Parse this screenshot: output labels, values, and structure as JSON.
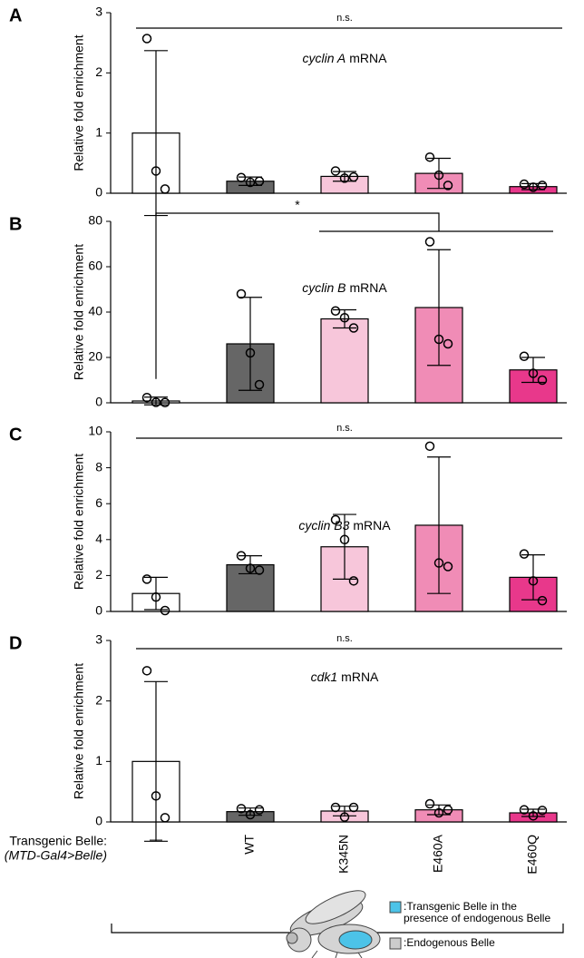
{
  "chart_data": [
    {
      "type": "bar",
      "panel": "A",
      "title_italic": "cyclin A",
      "title_rest": "mRNA",
      "y_label": "Relative fold enrichment",
      "categories": [
        null,
        null,
        null,
        null,
        null
      ],
      "values": [
        1.0,
        0.2,
        0.28,
        0.33,
        0.11
      ],
      "errors": [
        1.37,
        0.07,
        0.08,
        0.25,
        0.05
      ],
      "points": [
        [
          2.57,
          0.37,
          0.07
        ],
        [
          0.26,
          0.18,
          0.2
        ],
        [
          0.37,
          0.25,
          0.27
        ],
        [
          0.6,
          0.3,
          0.13
        ],
        [
          0.15,
          0.1,
          0.13
        ]
      ],
      "colors": [
        "#ffffff",
        "#666666",
        "#f7c6da",
        "#f08cb6",
        "#e8388b"
      ],
      "ylim": [
        0,
        3
      ],
      "yticks": [
        0,
        1,
        2,
        3
      ],
      "annotation": "n.s."
    },
    {
      "type": "bar",
      "panel": "B",
      "title_italic": "cyclin B",
      "title_rest": "mRNA",
      "y_label": "Relative fold enrichment",
      "categories": [
        null,
        null,
        null,
        null,
        null
      ],
      "values": [
        0.8,
        26,
        37,
        42,
        14.5
      ],
      "errors": [
        1.7,
        20.5,
        4,
        25.5,
        5.5
      ],
      "points": [
        [
          2.3,
          0.2,
          0.1
        ],
        [
          48,
          22,
          8
        ],
        [
          40.5,
          37.5,
          33
        ],
        [
          71,
          28,
          26
        ],
        [
          20.5,
          13,
          10
        ]
      ],
      "colors": [
        "#ffffff",
        "#666666",
        "#f7c6da",
        "#f08cb6",
        "#e8388b"
      ],
      "ylim": [
        0,
        80
      ],
      "yticks": [
        0,
        20,
        40,
        60,
        80
      ],
      "annotation": "*"
    },
    {
      "type": "bar",
      "panel": "C",
      "title_italic": "cyclin B3",
      "title_rest": "mRNA",
      "y_label": "Relative fold enrichment",
      "categories": [
        null,
        null,
        null,
        null,
        null
      ],
      "values": [
        1.0,
        2.6,
        3.6,
        4.8,
        1.9
      ],
      "errors": [
        0.9,
        0.5,
        1.8,
        3.8,
        1.25
      ],
      "points": [
        [
          1.8,
          0.8,
          0.05
        ],
        [
          3.1,
          2.4,
          2.3
        ],
        [
          5.1,
          4.0,
          1.7
        ],
        [
          9.2,
          2.7,
          2.5
        ],
        [
          3.2,
          1.7,
          0.6
        ]
      ],
      "colors": [
        "#ffffff",
        "#666666",
        "#f7c6da",
        "#f08cb6",
        "#e8388b"
      ],
      "ylim": [
        0,
        10
      ],
      "yticks": [
        0,
        2,
        4,
        6,
        8,
        10
      ],
      "annotation": "n.s."
    },
    {
      "type": "bar",
      "panel": "D",
      "title_italic": "cdk1",
      "title_rest": "mRNA",
      "y_label": "Relative fold enrichment",
      "categories": [
        "—",
        "WT",
        "K345N",
        "E460A",
        "E460Q"
      ],
      "x_label": "Transgenic Belle:",
      "x_sublabel": "(MTD-Gal4>Belle)",
      "values": [
        1.0,
        0.17,
        0.18,
        0.2,
        0.15
      ],
      "errors": [
        1.32,
        0.06,
        0.08,
        0.08,
        0.06
      ],
      "points": [
        [
          2.5,
          0.43,
          0.07
        ],
        [
          0.22,
          0.12,
          0.2
        ],
        [
          0.24,
          0.08,
          0.24
        ],
        [
          0.3,
          0.15,
          0.2
        ],
        [
          0.2,
          0.1,
          0.19
        ]
      ],
      "colors": [
        "#ffffff",
        "#666666",
        "#f7c6da",
        "#f08cb6",
        "#e8388b"
      ],
      "ylim": [
        0,
        3
      ],
      "yticks": [
        0,
        1,
        2,
        3
      ],
      "annotation": "n.s."
    }
  ],
  "legend": [
    {
      "text": [
        ":Transgenic Belle in the",
        "presence of endogenous Belle"
      ],
      "color": "#4cc3e8"
    },
    {
      "text": [
        ":Endogenous Belle"
      ],
      "color": "#cccccc"
    }
  ]
}
